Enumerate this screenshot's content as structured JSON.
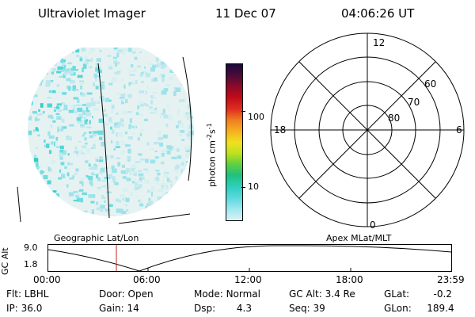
{
  "header": {
    "instrument": "Ultraviolet Imager",
    "date": "11 Dec 07",
    "time": "04:06:26 UT"
  },
  "colorbar": {
    "unit_text": "photon cm",
    "unit_exp1": "-2",
    "unit_s": "s",
    "unit_exp2": "-1",
    "ticks": [
      "100",
      "10"
    ],
    "colors": [
      "#1a0a3a",
      "#4a0a3a",
      "#8a0a2a",
      "#c00a1a",
      "#e03020",
      "#f08020",
      "#f5b020",
      "#f0e020",
      "#c0e020",
      "#60d040",
      "#20c080",
      "#30d0c0",
      "#60d8e0",
      "#a0e8ee",
      "#d8f2f4"
    ]
  },
  "polar_plot": {
    "mlt_labels": {
      "top": "12",
      "left": "18",
      "right": "6",
      "bottom": "0"
    },
    "lat_labels": [
      "60",
      "70",
      "80"
    ]
  },
  "timeline": {
    "y_axis_title": "GC Alt",
    "y_ticks": [
      "9.0",
      "1.8"
    ],
    "left_label": "Geographic Lat/Lon",
    "right_label": "Apex MLat/MLT",
    "x_ticks": [
      "00:00",
      "06:00",
      "12:00",
      "18:00",
      "23:59"
    ]
  },
  "footer": {
    "row1": [
      {
        "k": "Flt:",
        "v": "LBHL"
      },
      {
        "k": "Door:",
        "v": "Open"
      },
      {
        "k": "Mode:",
        "v": "Normal"
      },
      {
        "k": "GC Alt:",
        "v": "3.4 Re"
      },
      {
        "k": "GLat:",
        "v": "-0.2"
      }
    ],
    "row2": [
      {
        "k": "IP:",
        "v": "36.0"
      },
      {
        "k": "Gain:",
        "v": "14"
      },
      {
        "k": "Dsp:",
        "v": "4.3"
      },
      {
        "k": "Seq:",
        "v": "39"
      },
      {
        "k": "GLon:",
        "v": "189.4"
      }
    ]
  }
}
